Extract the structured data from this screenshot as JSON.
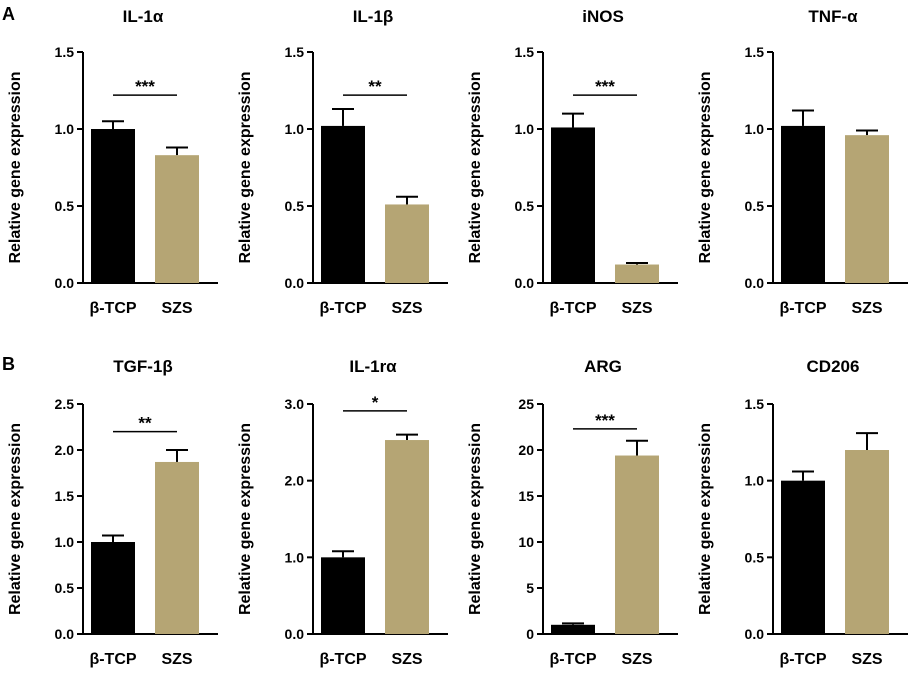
{
  "panel_labels": [
    "A",
    "B"
  ],
  "colors": {
    "control": "#000000",
    "treatment": "#b5a574",
    "axis": "#000000"
  },
  "chart_data": [
    {
      "type": "bar",
      "panel": "A",
      "title": "IL-1α",
      "categories": [
        "β-TCP",
        "SZS"
      ],
      "values": [
        1.0,
        0.83
      ],
      "errors": [
        0.05,
        0.05
      ],
      "ylabel": "Relative gene expression",
      "ylim": [
        0,
        1.5
      ],
      "yticks": [
        0,
        0.5,
        1.0,
        1.5
      ],
      "tick_labels": [
        "0.0",
        "0.5",
        "1.0",
        "1.5"
      ],
      "significance": "***",
      "sig_y": 1.22
    },
    {
      "type": "bar",
      "panel": "A",
      "title": "IL-1β",
      "categories": [
        "β-TCP",
        "SZS"
      ],
      "values": [
        1.02,
        0.51
      ],
      "errors": [
        0.11,
        0.05
      ],
      "ylabel": "Relative gene expression",
      "ylim": [
        0,
        1.5
      ],
      "yticks": [
        0,
        0.5,
        1.0,
        1.5
      ],
      "tick_labels": [
        "0.0",
        "0.5",
        "1.0",
        "1.5"
      ],
      "significance": "**",
      "sig_y": 1.22
    },
    {
      "type": "bar",
      "panel": "A",
      "title": "iNOS",
      "categories": [
        "β-TCP",
        "SZS"
      ],
      "values": [
        1.01,
        0.12
      ],
      "errors": [
        0.09,
        0.01
      ],
      "ylabel": "Relative gene expression",
      "ylim": [
        0,
        1.5
      ],
      "yticks": [
        0,
        0.5,
        1.0,
        1.5
      ],
      "tick_labels": [
        "0.0",
        "0.5",
        "1.0",
        "1.5"
      ],
      "significance": "***",
      "sig_y": 1.22
    },
    {
      "type": "bar",
      "panel": "A",
      "title": "TNF-α",
      "categories": [
        "β-TCP",
        "SZS"
      ],
      "values": [
        1.02,
        0.96
      ],
      "errors": [
        0.1,
        0.03
      ],
      "ylabel": "Relative gene expression",
      "ylim": [
        0,
        1.5
      ],
      "yticks": [
        0,
        0.5,
        1.0,
        1.5
      ],
      "tick_labels": [
        "0.0",
        "0.5",
        "1.0",
        "1.5"
      ],
      "significance": "",
      "sig_y": null
    },
    {
      "type": "bar",
      "panel": "B",
      "title": "TGF-1β",
      "categories": [
        "β-TCP",
        "SZS"
      ],
      "values": [
        1.0,
        1.87
      ],
      "errors": [
        0.07,
        0.13
      ],
      "ylabel": "Relative gene expression",
      "ylim": [
        0,
        2.5
      ],
      "yticks": [
        0,
        0.5,
        1.0,
        1.5,
        2.0,
        2.5
      ],
      "tick_labels": [
        "0.0",
        "0.5",
        "1.0",
        "1.5",
        "2.0",
        "2.5"
      ],
      "significance": "**",
      "sig_y": 2.2
    },
    {
      "type": "bar",
      "panel": "B",
      "title": "IL-1rα",
      "categories": [
        "β-TCP",
        "SZS"
      ],
      "values": [
        1.0,
        2.53
      ],
      "errors": [
        0.08,
        0.07
      ],
      "ylabel": "Relative gene expression",
      "ylim": [
        0,
        3.0
      ],
      "yticks": [
        0,
        1.0,
        2.0,
        3.0
      ],
      "tick_labels": [
        "0.0",
        "1.0",
        "2.0",
        "3.0"
      ],
      "significance": "*",
      "sig_y": 2.91
    },
    {
      "type": "bar",
      "panel": "B",
      "title": "ARG",
      "categories": [
        "β-TCP",
        "SZS"
      ],
      "values": [
        1.0,
        19.4
      ],
      "errors": [
        0.15,
        1.6
      ],
      "ylabel": "Relative gene expression",
      "ylim": [
        0,
        25
      ],
      "yticks": [
        0,
        5,
        10,
        15,
        20,
        25
      ],
      "tick_labels": [
        "0",
        "5",
        "10",
        "15",
        "20",
        "25"
      ],
      "significance": "***",
      "sig_y": 22.3
    },
    {
      "type": "bar",
      "panel": "B",
      "title": "CD206",
      "categories": [
        "β-TCP",
        "SZS"
      ],
      "values": [
        1.0,
        1.2
      ],
      "errors": [
        0.06,
        0.11
      ],
      "ylabel": "Relative gene expression",
      "ylim": [
        0,
        1.5
      ],
      "yticks": [
        0,
        0.5,
        1.0,
        1.5
      ],
      "tick_labels": [
        "0.0",
        "0.5",
        "1.0",
        "1.5"
      ],
      "significance": "",
      "sig_y": null
    }
  ]
}
